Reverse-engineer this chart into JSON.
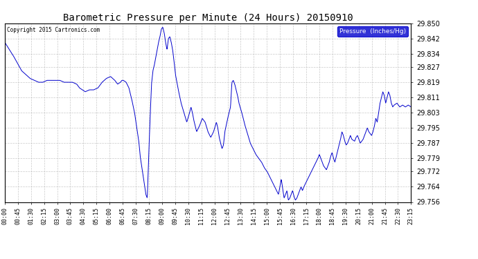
{
  "title": "Barometric Pressure per Minute (24 Hours) 20150910",
  "copyright": "Copyright 2015 Cartronics.com",
  "legend_label": "Pressure  (Inches/Hg)",
  "line_color": "#0000cc",
  "background_color": "#ffffff",
  "plot_bg_color": "#ffffff",
  "grid_color": "#bbbbbb",
  "ylim": [
    29.756,
    29.85
  ],
  "yticks": [
    29.85,
    29.842,
    29.834,
    29.827,
    29.819,
    29.811,
    29.803,
    29.795,
    29.787,
    29.779,
    29.772,
    29.764,
    29.756
  ],
  "xtick_labels": [
    "00:00",
    "00:45",
    "01:30",
    "02:15",
    "03:00",
    "03:45",
    "04:30",
    "05:15",
    "06:00",
    "06:45",
    "07:30",
    "08:15",
    "09:00",
    "09:45",
    "10:30",
    "11:15",
    "12:00",
    "12:45",
    "13:30",
    "14:15",
    "15:00",
    "15:45",
    "16:30",
    "17:15",
    "18:00",
    "18:45",
    "19:30",
    "20:15",
    "21:00",
    "21:45",
    "22:30",
    "23:15"
  ],
  "waypoints": [
    [
      0,
      29.84
    ],
    [
      30,
      29.833
    ],
    [
      60,
      29.825
    ],
    [
      90,
      29.821
    ],
    [
      105,
      29.82
    ],
    [
      120,
      29.819
    ],
    [
      135,
      29.819
    ],
    [
      150,
      29.82
    ],
    [
      165,
      29.82
    ],
    [
      180,
      29.82
    ],
    [
      195,
      29.82
    ],
    [
      210,
      29.819
    ],
    [
      225,
      29.819
    ],
    [
      240,
      29.819
    ],
    [
      255,
      29.818
    ],
    [
      265,
      29.816
    ],
    [
      275,
      29.815
    ],
    [
      285,
      29.814
    ],
    [
      300,
      29.815
    ],
    [
      315,
      29.815
    ],
    [
      330,
      29.816
    ],
    [
      345,
      29.819
    ],
    [
      360,
      29.821
    ],
    [
      375,
      29.822
    ],
    [
      390,
      29.82
    ],
    [
      400,
      29.818
    ],
    [
      410,
      29.819
    ],
    [
      415,
      29.82
    ],
    [
      420,
      29.82
    ],
    [
      430,
      29.819
    ],
    [
      440,
      29.816
    ],
    [
      450,
      29.81
    ],
    [
      460,
      29.803
    ],
    [
      470,
      29.793
    ],
    [
      475,
      29.788
    ],
    [
      480,
      29.78
    ],
    [
      485,
      29.775
    ],
    [
      490,
      29.77
    ],
    [
      495,
      29.765
    ],
    [
      500,
      29.76
    ],
    [
      505,
      29.758
    ],
    [
      510,
      29.78
    ],
    [
      515,
      29.8
    ],
    [
      520,
      29.818
    ],
    [
      525,
      29.825
    ],
    [
      530,
      29.828
    ],
    [
      535,
      29.832
    ],
    [
      540,
      29.836
    ],
    [
      545,
      29.84
    ],
    [
      550,
      29.843
    ],
    [
      555,
      29.847
    ],
    [
      560,
      29.848
    ],
    [
      565,
      29.845
    ],
    [
      570,
      29.84
    ],
    [
      575,
      29.836
    ],
    [
      580,
      29.842
    ],
    [
      585,
      29.843
    ],
    [
      590,
      29.84
    ],
    [
      595,
      29.836
    ],
    [
      600,
      29.83
    ],
    [
      605,
      29.823
    ],
    [
      615,
      29.815
    ],
    [
      625,
      29.808
    ],
    [
      635,
      29.803
    ],
    [
      645,
      29.798
    ],
    [
      655,
      29.803
    ],
    [
      660,
      29.806
    ],
    [
      665,
      29.803
    ],
    [
      670,
      29.799
    ],
    [
      680,
      29.793
    ],
    [
      690,
      29.796
    ],
    [
      700,
      29.8
    ],
    [
      710,
      29.798
    ],
    [
      720,
      29.793
    ],
    [
      730,
      29.79
    ],
    [
      740,
      29.793
    ],
    [
      750,
      29.798
    ],
    [
      755,
      29.795
    ],
    [
      760,
      29.79
    ],
    [
      770,
      29.784
    ],
    [
      775,
      29.786
    ],
    [
      780,
      29.793
    ],
    [
      790,
      29.8
    ],
    [
      795,
      29.803
    ],
    [
      800,
      29.806
    ],
    [
      805,
      29.819
    ],
    [
      810,
      29.82
    ],
    [
      815,
      29.818
    ],
    [
      820,
      29.815
    ],
    [
      825,
      29.812
    ],
    [
      830,
      29.808
    ],
    [
      840,
      29.803
    ],
    [
      850,
      29.797
    ],
    [
      860,
      29.792
    ],
    [
      870,
      29.787
    ],
    [
      880,
      29.784
    ],
    [
      890,
      29.781
    ],
    [
      900,
      29.779
    ],
    [
      910,
      29.777
    ],
    [
      920,
      29.774
    ],
    [
      930,
      29.772
    ],
    [
      940,
      29.769
    ],
    [
      950,
      29.766
    ],
    [
      960,
      29.763
    ],
    [
      970,
      29.76
    ],
    [
      975,
      29.764
    ],
    [
      980,
      29.768
    ],
    [
      985,
      29.763
    ],
    [
      990,
      29.758
    ],
    [
      995,
      29.76
    ],
    [
      1000,
      29.762
    ],
    [
      1005,
      29.757
    ],
    [
      1010,
      29.758
    ],
    [
      1020,
      29.762
    ],
    [
      1025,
      29.759
    ],
    [
      1030,
      29.757
    ],
    [
      1035,
      29.758
    ],
    [
      1040,
      29.76
    ],
    [
      1050,
      29.764
    ],
    [
      1055,
      29.762
    ],
    [
      1060,
      29.764
    ],
    [
      1070,
      29.767
    ],
    [
      1080,
      29.77
    ],
    [
      1090,
      29.773
    ],
    [
      1100,
      29.776
    ],
    [
      1110,
      29.779
    ],
    [
      1115,
      29.781
    ],
    [
      1120,
      29.779
    ],
    [
      1125,
      29.777
    ],
    [
      1130,
      29.775
    ],
    [
      1140,
      29.773
    ],
    [
      1150,
      29.777
    ],
    [
      1155,
      29.78
    ],
    [
      1160,
      29.782
    ],
    [
      1165,
      29.779
    ],
    [
      1170,
      29.777
    ],
    [
      1175,
      29.78
    ],
    [
      1180,
      29.783
    ],
    [
      1185,
      29.786
    ],
    [
      1190,
      29.789
    ],
    [
      1195,
      29.793
    ],
    [
      1200,
      29.791
    ],
    [
      1205,
      29.788
    ],
    [
      1210,
      29.786
    ],
    [
      1215,
      29.787
    ],
    [
      1220,
      29.789
    ],
    [
      1225,
      29.791
    ],
    [
      1230,
      29.789
    ],
    [
      1240,
      29.788
    ],
    [
      1245,
      29.79
    ],
    [
      1250,
      29.791
    ],
    [
      1255,
      29.789
    ],
    [
      1260,
      29.787
    ],
    [
      1270,
      29.789
    ],
    [
      1275,
      29.791
    ],
    [
      1280,
      29.793
    ],
    [
      1285,
      29.795
    ],
    [
      1290,
      29.793
    ],
    [
      1300,
      29.791
    ],
    [
      1305,
      29.793
    ],
    [
      1310,
      29.796
    ],
    [
      1315,
      29.8
    ],
    [
      1320,
      29.798
    ],
    [
      1325,
      29.803
    ],
    [
      1330,
      29.808
    ],
    [
      1335,
      29.811
    ],
    [
      1340,
      29.814
    ],
    [
      1345,
      29.812
    ],
    [
      1350,
      29.808
    ],
    [
      1355,
      29.811
    ],
    [
      1360,
      29.814
    ],
    [
      1365,
      29.812
    ],
    [
      1370,
      29.808
    ],
    [
      1375,
      29.806
    ],
    [
      1380,
      29.807
    ],
    [
      1390,
      29.808
    ],
    [
      1395,
      29.807
    ],
    [
      1400,
      29.806
    ],
    [
      1410,
      29.807
    ],
    [
      1420,
      29.806
    ],
    [
      1430,
      29.807
    ],
    [
      1440,
      29.806
    ]
  ]
}
